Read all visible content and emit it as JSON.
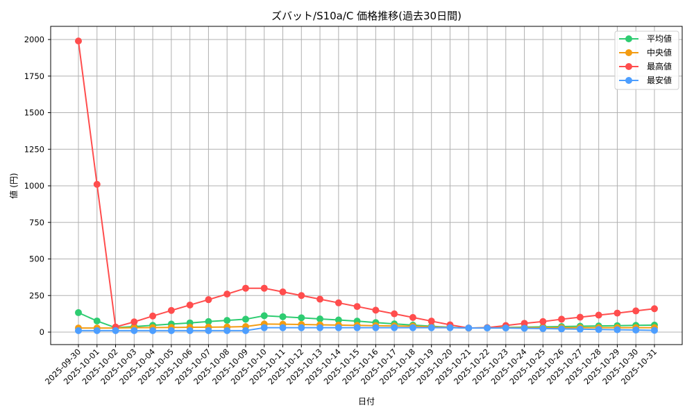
{
  "chart_data": {
    "type": "line",
    "title": "ズバット/S10a/C 価格推移(過去30日間)",
    "xlabel": "日付",
    "ylabel": "値 (円)",
    "ylim": [
      -90,
      2085
    ],
    "yticks": [
      0,
      250,
      500,
      750,
      1000,
      1250,
      1500,
      1750,
      2000
    ],
    "grid": true,
    "legend_position": "upper right",
    "categories": [
      "2025-09-30",
      "2025-10-01",
      "2025-10-02",
      "2025-10-03",
      "2025-10-04",
      "2025-10-05",
      "2025-10-06",
      "2025-10-07",
      "2025-10-08",
      "2025-10-09",
      "2025-10-10",
      "2025-10-11",
      "2025-10-12",
      "2025-10-13",
      "2025-10-14",
      "2025-10-15",
      "2025-10-16",
      "2025-10-17",
      "2025-10-18",
      "2025-10-19",
      "2025-10-20",
      "2025-10-21",
      "2025-10-22",
      "2025-10-23",
      "2025-10-24",
      "2025-10-25",
      "2025-10-26",
      "2025-10-27",
      "2025-10-28",
      "2025-10-29",
      "2025-10-30",
      "2025-10-31"
    ],
    "series": [
      {
        "name": "平均値",
        "color": "#2ecc71",
        "values": [
          133,
          76,
          30,
          38,
          46,
          55,
          63,
          72,
          80,
          88,
          112,
          105,
          98,
          90,
          83,
          75,
          65,
          56,
          48,
          40,
          33,
          28,
          30,
          32,
          34,
          36,
          38,
          40,
          42,
          44,
          46,
          48
        ]
      },
      {
        "name": "中央値",
        "color": "#f39c12",
        "values": [
          28,
          28,
          28,
          30,
          31,
          32,
          33,
          34,
          35,
          38,
          55,
          54,
          52,
          50,
          48,
          46,
          44,
          42,
          40,
          36,
          32,
          28,
          30,
          30,
          30,
          30,
          30,
          30,
          30,
          30,
          30,
          30
        ]
      },
      {
        "name": "最高値",
        "color": "#ff4d4d",
        "values": [
          1990,
          1010,
          35,
          70,
          110,
          148,
          185,
          222,
          260,
          300,
          300,
          275,
          250,
          225,
          200,
          175,
          150,
          125,
          100,
          75,
          50,
          28,
          30,
          45,
          60,
          72,
          88,
          102,
          116,
          130,
          145,
          160
        ]
      },
      {
        "name": "最安値",
        "color": "#4d9eff",
        "values": [
          10,
          10,
          10,
          10,
          10,
          10,
          10,
          10,
          10,
          10,
          30,
          30,
          30,
          30,
          30,
          30,
          30,
          30,
          30,
          30,
          30,
          28,
          28,
          28,
          26,
          24,
          22,
          20,
          18,
          16,
          14,
          12
        ]
      }
    ]
  }
}
